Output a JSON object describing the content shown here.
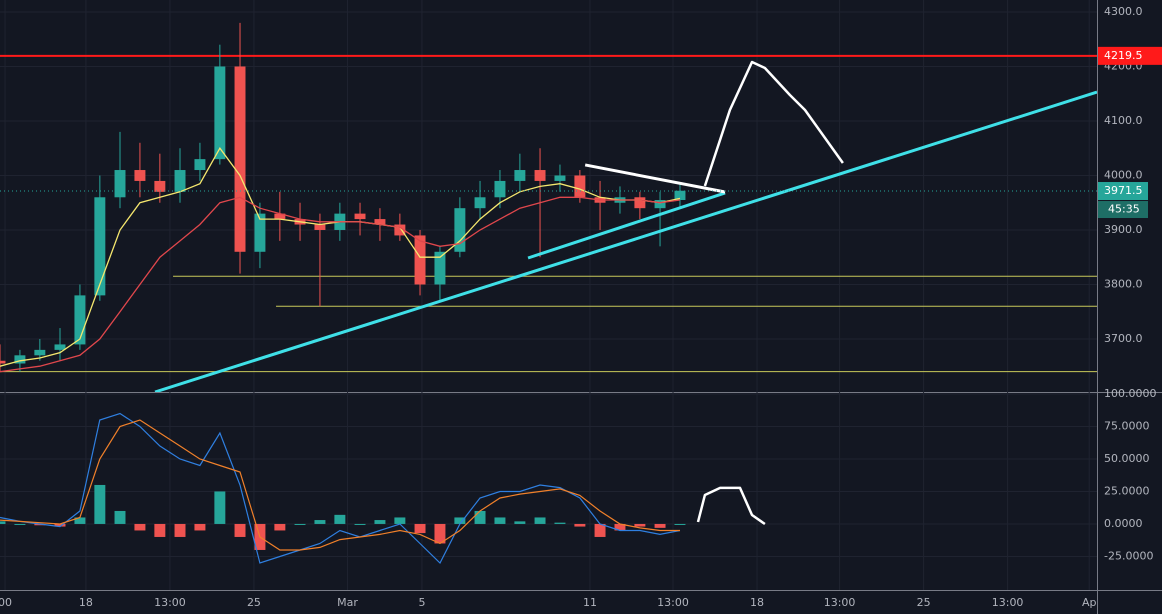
{
  "chart_data": {
    "type": "candlestick",
    "background": "#131722",
    "grid": true,
    "xlim": [
      14.42,
      60.125
    ],
    "xticks": [
      {
        "value": 14.63,
        "label": "00"
      },
      18,
      {
        "value": 21.5,
        "label": "13:00"
      },
      25,
      {
        "value": 28.9,
        "label": "Mar"
      },
      {
        "value": 32,
        "label": "5"
      },
      {
        "value": 39,
        "label": "11"
      },
      {
        "value": 42.46,
        "label": "13:00"
      },
      {
        "value": 45.96,
        "label": "18"
      },
      {
        "value": 49.4,
        "label": "13:00"
      },
      {
        "value": 52.9,
        "label": "25"
      },
      {
        "value": 56.4,
        "label": "13:00"
      },
      {
        "value": 59.8,
        "label": "Ap"
      }
    ],
    "ylim": [
      3602.7,
      4322
    ],
    "yticks": [
      {
        "value": 3700,
        "label": "3700.0"
      },
      {
        "value": 3800,
        "label": "3800.0"
      },
      {
        "value": 3900,
        "label": "3900.0"
      },
      {
        "value": 4000,
        "label": "4000.0"
      },
      {
        "value": 4100,
        "label": "4100.0"
      },
      {
        "value": 4200,
        "label": "4200.0"
      },
      {
        "value": 4300,
        "label": "4300.0"
      }
    ],
    "up_color": "#26a69a",
    "down_color": "#ef5350",
    "x": [
      14.42,
      15.25,
      16.08,
      16.92,
      17.75,
      18.58,
      19.42,
      20.25,
      21.08,
      21.92,
      22.75,
      23.58,
      24.42,
      25.25,
      26.08,
      26.92,
      27.75,
      28.58,
      29.42,
      30.25,
      31.08,
      31.92,
      32.75,
      33.58,
      34.42,
      35.25,
      36.08,
      36.92,
      37.75,
      38.58,
      39.42,
      40.25,
      41.08,
      41.92,
      42.75
    ],
    "candles": [
      [
        3660,
        3690,
        3640,
        3655
      ],
      [
        3655,
        3680,
        3640,
        3670
      ],
      [
        3670,
        3700,
        3660,
        3680
      ],
      [
        3680,
        3720,
        3660,
        3690
      ],
      [
        3690,
        3800,
        3680,
        3780
      ],
      [
        3780,
        4000,
        3770,
        3960
      ],
      [
        3960,
        4080,
        3940,
        4010
      ],
      [
        4010,
        4060,
        3960,
        3990
      ],
      [
        3990,
        4040,
        3950,
        3970
      ],
      [
        3970,
        4050,
        3950,
        4010
      ],
      [
        4010,
        4060,
        3990,
        4030
      ],
      [
        4030,
        4240,
        4020,
        4200
      ],
      [
        4200,
        4280,
        3820,
        3860
      ],
      [
        3860,
        3950,
        3830,
        3930
      ],
      [
        3930,
        3970,
        3880,
        3920
      ],
      [
        3920,
        3950,
        3880,
        3910
      ],
      [
        3910,
        3930,
        3760,
        3900
      ],
      [
        3900,
        3950,
        3880,
        3930
      ],
      [
        3930,
        3950,
        3890,
        3920
      ],
      [
        3920,
        3940,
        3880,
        3910
      ],
      [
        3910,
        3930,
        3880,
        3890
      ],
      [
        3890,
        3900,
        3780,
        3800
      ],
      [
        3800,
        3870,
        3770,
        3860
      ],
      [
        3860,
        3960,
        3850,
        3940
      ],
      [
        3940,
        3990,
        3920,
        3960
      ],
      [
        3960,
        4010,
        3940,
        3990
      ],
      [
        3990,
        4040,
        3970,
        4010
      ],
      [
        4010,
        4050,
        3850,
        3990
      ],
      [
        3990,
        4020,
        3970,
        4000
      ],
      [
        4000,
        4010,
        3950,
        3960
      ],
      [
        3960,
        3990,
        3900,
        3950
      ],
      [
        3950,
        3980,
        3930,
        3960
      ],
      [
        3960,
        3970,
        3920,
        3940
      ],
      [
        3940,
        3970,
        3870,
        3955
      ],
      [
        3955,
        3985,
        3940,
        3972
      ]
    ],
    "series": [
      {
        "color": "#f5e76e",
        "values": [
          3650,
          3660,
          3665,
          3675,
          3700,
          3800,
          3900,
          3950,
          3960,
          3970,
          3985,
          4050,
          4000,
          3920,
          3920,
          3915,
          3910,
          3915,
          3915,
          3910,
          3905,
          3850,
          3850,
          3880,
          3920,
          3950,
          3970,
          3980,
          3985,
          3975,
          3960,
          3955,
          3955,
          3950,
          3958
        ]
      },
      {
        "color": "#e0474c",
        "values": [
          3640,
          3645,
          3650,
          3660,
          3670,
          3700,
          3750,
          3800,
          3850,
          3880,
          3910,
          3950,
          3960,
          3940,
          3930,
          3920,
          3915,
          3915,
          3915,
          3910,
          3905,
          3880,
          3870,
          3875,
          3900,
          3920,
          3940,
          3950,
          3960,
          3960,
          3955,
          3955,
          3955,
          3950,
          3955
        ]
      }
    ],
    "last_price": 3971.5,
    "countdown": "45:35",
    "levels": [
      {
        "value": 4219.5,
        "from": 14.42,
        "color": "#ff1a1a"
      },
      {
        "value": 3815,
        "from": 21.63,
        "color": "#c8c85a"
      },
      {
        "value": 3760,
        "from": 25.92,
        "color": "#c8c85a"
      },
      {
        "value": 3640,
        "from": 14.42,
        "color": "#c8c85a"
      }
    ],
    "trendlines": [
      {
        "color": "#3fe0e8",
        "points": [
          [
            20.88,
            3602.7
          ],
          [
            60.125,
            4153
          ]
        ]
      },
      {
        "color": "#3fe0e8",
        "points": [
          [
            36.42,
            3848.6
          ],
          [
            44.63,
            3967.9
          ]
        ]
      },
      {
        "color": "#ffffff",
        "points": [
          [
            38.8,
            4019.3
          ],
          [
            44.63,
            3969.7
          ]
        ]
      }
    ],
    "sketch": {
      "color": "#ffffff",
      "points": [
        [
          43.79,
          3980.7
        ],
        [
          44.83,
          4120.2
        ],
        [
          45.75,
          4208.3
        ],
        [
          46.29,
          4197.2
        ],
        [
          47.33,
          4147.7
        ],
        [
          47.96,
          4120.2
        ],
        [
          49.54,
          4022.9
        ]
      ]
    },
    "macd": {
      "ylim": [
        -50.8,
        101.5
      ],
      "yticks": [
        {
          "value": -25,
          "label": "-25.0000"
        },
        {
          "value": 0,
          "label": "0.0000"
        },
        {
          "value": 25,
          "label": "25.0000"
        },
        {
          "value": 50,
          "label": "50.0000"
        },
        {
          "value": 75,
          "label": "75.0000"
        },
        {
          "value": 100,
          "label": "100.0000"
        }
      ],
      "macd_color": "#2f7fe0",
      "signal_color": "#f0802a",
      "macd": [
        5,
        2,
        0,
        -2,
        10,
        80,
        85,
        75,
        60,
        50,
        45,
        70,
        30,
        -30,
        -25,
        -20,
        -15,
        -5,
        -10,
        -5,
        0,
        -15,
        -30,
        0,
        20,
        25,
        25,
        30,
        28,
        20,
        0,
        -5,
        -5,
        -8,
        -5
      ],
      "signal": [
        3,
        2,
        1,
        0,
        5,
        50,
        75,
        80,
        70,
        60,
        50,
        45,
        40,
        -10,
        -20,
        -20,
        -18,
        -12,
        -10,
        -8,
        -5,
        -8,
        -15,
        -5,
        10,
        20,
        23,
        25,
        27,
        22,
        10,
        0,
        -3,
        -5,
        -5
      ],
      "histogram": [
        2,
        0,
        -1,
        -2,
        5,
        30,
        10,
        -5,
        -10,
        -10,
        -5,
        25,
        -10,
        -20,
        -5,
        0,
        3,
        7,
        0,
        3,
        5,
        -7,
        -15,
        5,
        10,
        5,
        2,
        5,
        1,
        -2,
        -10,
        -5,
        -2,
        -3,
        0
      ],
      "sketch": [
        [
          43.5,
          1.5
        ],
        [
          43.79,
          22.3
        ],
        [
          44.42,
          27.7
        ],
        [
          45.25,
          27.7
        ],
        [
          45.75,
          6.9
        ],
        [
          46.29,
          0
        ]
      ]
    }
  }
}
